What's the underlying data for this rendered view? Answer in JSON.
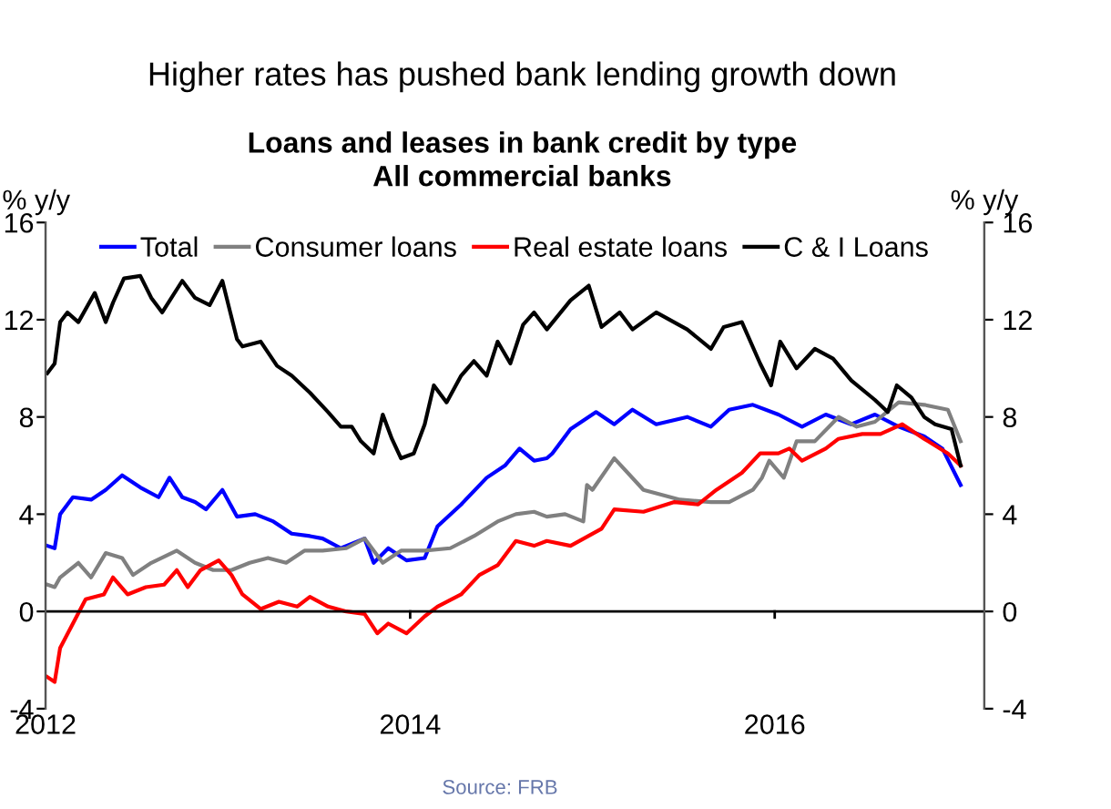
{
  "chart_data": {
    "type": "line",
    "title": "Higher rates has pushed bank lending growth down",
    "subtitle": "Loans and leases in bank credit by type\nAll commercial banks",
    "ylabel": "% y/y",
    "y2label": "% y/y",
    "annotations": [
      "Source: FRB"
    ],
    "xlim": [
      2012,
      2017.15
    ],
    "xticks": [
      {
        "value": 2012,
        "label": "2012"
      },
      {
        "value": 2014,
        "label": "2014"
      },
      {
        "value": 2016,
        "label": "2016"
      }
    ],
    "ylim": [
      -4,
      16
    ],
    "yticks": [
      -4,
      0,
      4,
      8,
      12,
      16
    ],
    "y2lim": [
      -4,
      16
    ],
    "y2ticks": [
      -4,
      0,
      4,
      8,
      12,
      16
    ],
    "ref_lines": [
      {
        "axis": "y",
        "value": 0,
        "color": "#000000"
      }
    ],
    "legend": "top",
    "grid": false,
    "marker": "none",
    "line_style": "solid",
    "series": [
      {
        "name": "Total",
        "color": "#0000ff",
        "x": [
          2012.01,
          2012.05,
          2012.08,
          2012.15,
          2012.25,
          2012.33,
          2012.42,
          2012.52,
          2012.62,
          2012.68,
          2012.75,
          2012.82,
          2012.88,
          2012.97,
          2013.05,
          2013.15,
          2013.25,
          2013.35,
          2013.45,
          2013.52,
          2013.62,
          2013.75,
          2013.8,
          2013.88,
          2013.98,
          2014.08,
          2014.15,
          2014.28,
          2014.42,
          2014.52,
          2014.6,
          2014.68,
          2014.75,
          2014.78,
          2014.88,
          2015.02,
          2015.12,
          2015.22,
          2015.35,
          2015.52,
          2015.65,
          2015.75,
          2015.88,
          2016.02,
          2016.15,
          2016.28,
          2016.42,
          2016.55,
          2016.68,
          2016.82,
          2016.92,
          2017.02
        ],
        "values": [
          2.7,
          2.6,
          4.0,
          4.7,
          4.6,
          5.0,
          5.6,
          5.1,
          4.7,
          5.5,
          4.7,
          4.5,
          4.2,
          5.0,
          3.9,
          4.0,
          3.7,
          3.2,
          3.1,
          3.0,
          2.6,
          3.0,
          2.0,
          2.6,
          2.1,
          2.2,
          3.5,
          4.4,
          5.5,
          6.0,
          6.7,
          6.2,
          6.3,
          6.5,
          7.5,
          8.2,
          7.7,
          8.3,
          7.7,
          8.0,
          7.6,
          8.3,
          8.5,
          8.1,
          7.6,
          8.1,
          7.7,
          8.1,
          7.6,
          7.2,
          6.7,
          5.2
        ]
      },
      {
        "name": "Consumer loans",
        "color": "#808080",
        "x": [
          2012.01,
          2012.05,
          2012.08,
          2012.18,
          2012.25,
          2012.33,
          2012.42,
          2012.48,
          2012.58,
          2012.72,
          2012.82,
          2012.92,
          2013.02,
          2013.12,
          2013.22,
          2013.32,
          2013.42,
          2013.52,
          2013.65,
          2013.75,
          2013.85,
          2013.95,
          2014.08,
          2014.22,
          2014.35,
          2014.48,
          2014.58,
          2014.68,
          2014.75,
          2014.85,
          2014.95,
          2014.97,
          2015.0,
          2015.12,
          2015.28,
          2015.48,
          2015.65,
          2015.75,
          2015.88,
          2015.93,
          2015.97,
          2016.05,
          2016.12,
          2016.22,
          2016.35,
          2016.45,
          2016.55,
          2016.68,
          2016.82,
          2016.95,
          2017.02
        ],
        "values": [
          1.1,
          1.0,
          1.4,
          2.0,
          1.4,
          2.4,
          2.2,
          1.5,
          2.0,
          2.5,
          2.0,
          1.7,
          1.7,
          2.0,
          2.2,
          2.0,
          2.5,
          2.5,
          2.6,
          3.0,
          2.0,
          2.5,
          2.5,
          2.6,
          3.1,
          3.7,
          4.0,
          4.1,
          3.9,
          4.0,
          3.7,
          5.2,
          5.0,
          6.3,
          5.0,
          4.6,
          4.5,
          4.5,
          5.0,
          5.5,
          6.2,
          5.5,
          7.0,
          7.0,
          8.0,
          7.6,
          7.8,
          8.6,
          8.5,
          8.3,
          7.0
        ]
      },
      {
        "name": "Real estate loans",
        "color": "#ff0000",
        "x": [
          2012.01,
          2012.05,
          2012.08,
          2012.15,
          2012.22,
          2012.32,
          2012.37,
          2012.45,
          2012.55,
          2012.65,
          2012.72,
          2012.78,
          2012.85,
          2012.95,
          2013.02,
          2013.08,
          2013.18,
          2013.28,
          2013.38,
          2013.45,
          2013.55,
          2013.65,
          2013.75,
          2013.82,
          2013.88,
          2013.98,
          2014.08,
          2014.15,
          2014.28,
          2014.38,
          2014.48,
          2014.58,
          2014.68,
          2014.75,
          2014.88,
          2015.05,
          2015.12,
          2015.28,
          2015.45,
          2015.58,
          2015.68,
          2015.82,
          2015.92,
          2016.02,
          2016.08,
          2016.15,
          2016.28,
          2016.35,
          2016.48,
          2016.58,
          2016.7,
          2016.82,
          2016.95,
          2017.02
        ],
        "values": [
          -2.7,
          -2.9,
          -1.5,
          -0.5,
          0.5,
          0.7,
          1.4,
          0.7,
          1.0,
          1.1,
          1.7,
          1.0,
          1.7,
          2.1,
          1.5,
          0.7,
          0.1,
          0.4,
          0.2,
          0.6,
          0.2,
          0.0,
          -0.1,
          -0.9,
          -0.5,
          -0.9,
          -0.2,
          0.2,
          0.7,
          1.5,
          1.9,
          2.9,
          2.7,
          2.9,
          2.7,
          3.4,
          4.2,
          4.1,
          4.5,
          4.4,
          5.0,
          5.7,
          6.5,
          6.5,
          6.7,
          6.2,
          6.7,
          7.1,
          7.3,
          7.3,
          7.7,
          7.1,
          6.5,
          6.0
        ]
      },
      {
        "name": "C & I Loans",
        "color": "#000000",
        "x": [
          2012.01,
          2012.05,
          2012.08,
          2012.12,
          2012.18,
          2012.27,
          2012.33,
          2012.37,
          2012.43,
          2012.52,
          2012.58,
          2012.64,
          2012.75,
          2012.82,
          2012.9,
          2012.97,
          2013.05,
          2013.08,
          2013.18,
          2013.27,
          2013.35,
          2013.45,
          2013.55,
          2013.62,
          2013.68,
          2013.73,
          2013.8,
          2013.85,
          2013.9,
          2013.95,
          2014.02,
          2014.08,
          2014.13,
          2014.2,
          2014.28,
          2014.35,
          2014.42,
          2014.48,
          2014.55,
          2014.62,
          2014.68,
          2014.75,
          2014.88,
          2014.98,
          2015.05,
          2015.15,
          2015.22,
          2015.35,
          2015.52,
          2015.65,
          2015.72,
          2015.82,
          2015.92,
          2015.98,
          2016.03,
          2016.12,
          2016.22,
          2016.32,
          2016.42,
          2016.55,
          2016.62,
          2016.67,
          2016.75,
          2016.82,
          2016.88,
          2016.97,
          2017.02
        ],
        "values": [
          9.8,
          10.2,
          11.9,
          12.3,
          11.9,
          13.1,
          11.9,
          12.7,
          13.7,
          13.8,
          12.9,
          12.3,
          13.6,
          12.9,
          12.6,
          13.6,
          11.2,
          10.9,
          11.1,
          10.1,
          9.7,
          9.0,
          8.2,
          7.6,
          7.6,
          7.0,
          6.5,
          8.1,
          7.1,
          6.3,
          6.5,
          7.7,
          9.3,
          8.6,
          9.7,
          10.3,
          9.7,
          11.1,
          10.2,
          11.8,
          12.3,
          11.6,
          12.8,
          13.4,
          11.7,
          12.3,
          11.6,
          12.3,
          11.6,
          10.8,
          11.7,
          11.9,
          10.2,
          9.3,
          11.1,
          10.0,
          10.8,
          10.4,
          9.5,
          8.7,
          8.2,
          9.3,
          8.8,
          8.0,
          7.7,
          7.5,
          6.0
        ]
      }
    ]
  }
}
